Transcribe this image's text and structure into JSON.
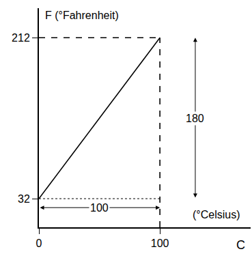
{
  "chart_data": {
    "type": "line",
    "xlabel": "C",
    "ylabel": "F (°Fahrenheit)",
    "x": [
      0,
      100
    ],
    "values": [
      32,
      212
    ],
    "color": "#000000",
    "xlim": [
      0,
      175
    ],
    "ylim": [
      0,
      245
    ],
    "xticks": [
      0,
      100
    ],
    "yticks": [
      32,
      212
    ],
    "grid": false,
    "annotations": [
      "100",
      "180",
      "(°Celsius)"
    ]
  }
}
